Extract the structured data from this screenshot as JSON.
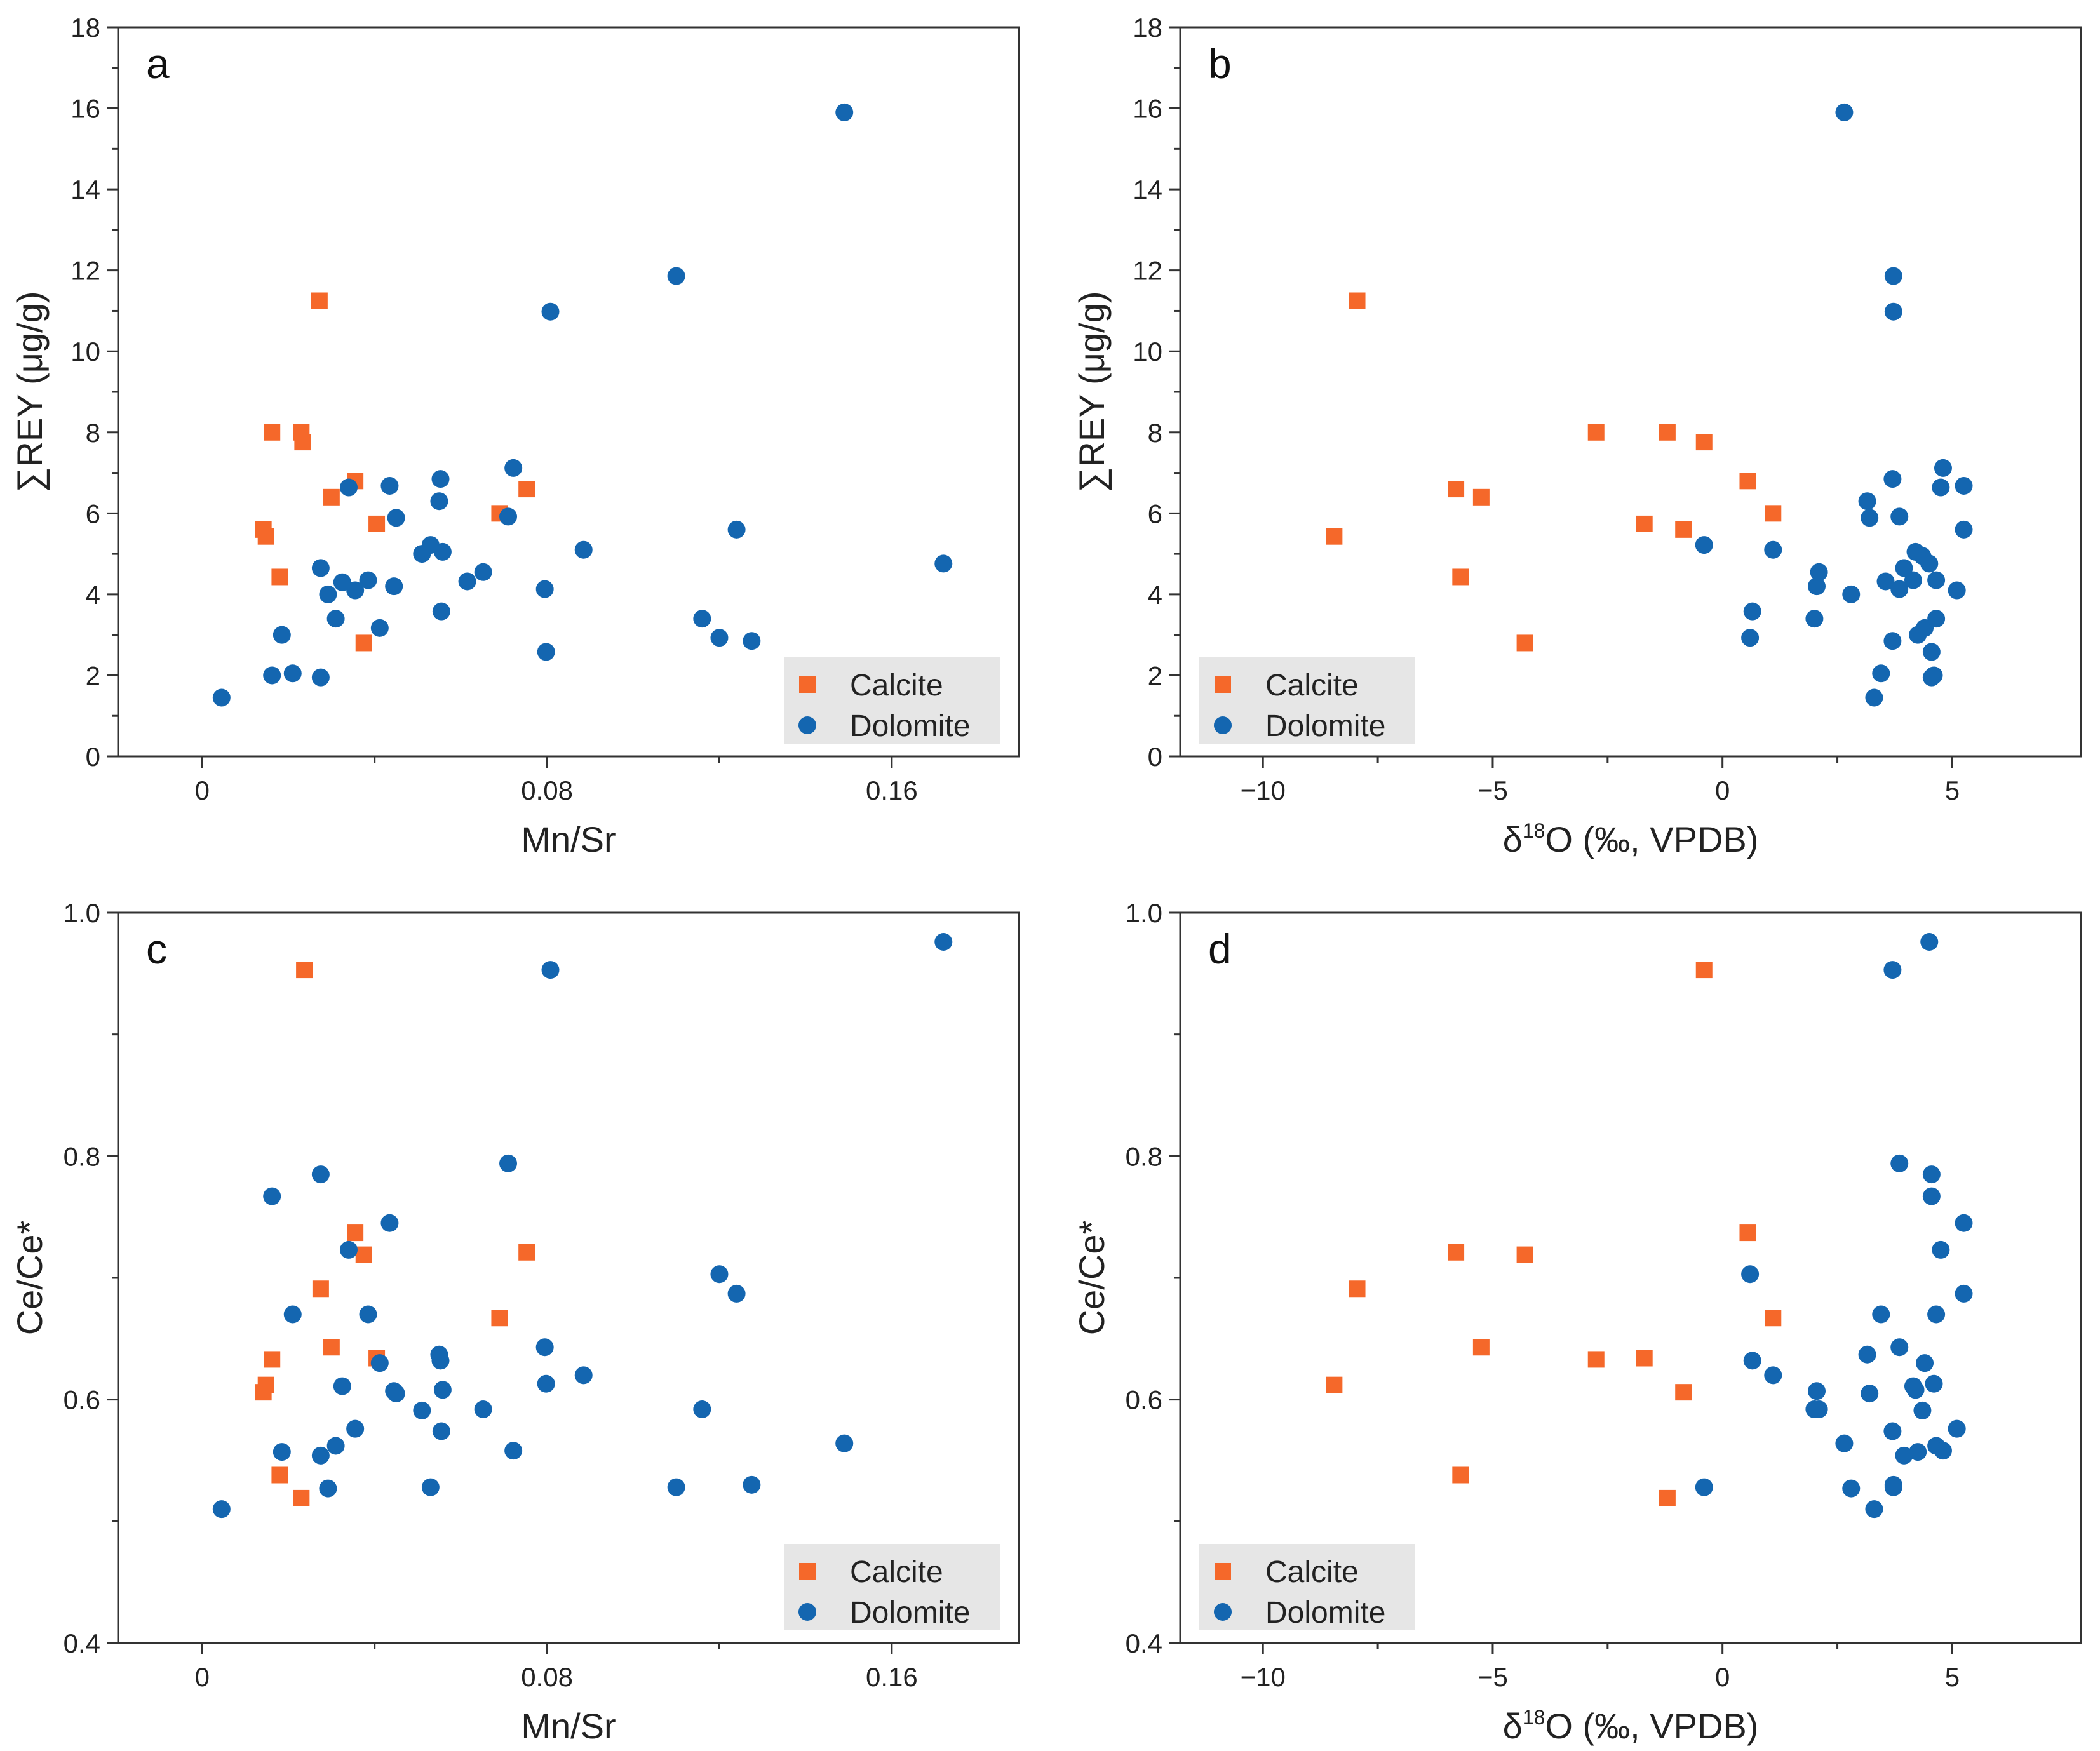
{
  "colors": {
    "calcite": "#f5682a",
    "dolomite": "#1466b0",
    "axis": "#333333",
    "legend_bg": "#e6e6e6"
  },
  "chart_data": [
    {
      "type": "scatter",
      "panel": "a",
      "xlabel": "Mn/Sr",
      "ylabel": "∑REY (μg/g)",
      "xlim": [
        -0.0195,
        0.1895
      ],
      "ylim": [
        0,
        18
      ],
      "xticks": [
        0,
        0.08,
        0.16
      ],
      "xtick_labels": [
        "0",
        "0.08",
        "0.16"
      ],
      "xminor": [
        0.04,
        0.12
      ],
      "yticks": [
        0,
        2,
        4,
        6,
        8,
        10,
        12,
        14,
        16,
        18
      ],
      "ytick_labels": [
        "0",
        "2",
        "4",
        "6",
        "8",
        "10",
        "12",
        "14",
        "16",
        "18"
      ],
      "yminor": [
        1,
        3,
        5,
        7,
        9,
        11,
        13,
        15,
        17
      ],
      "legend": {
        "position": "bottom-right",
        "entries": [
          "Calcite",
          "Dolomite"
        ]
      },
      "series": [
        {
          "name": "Calcite",
          "marker": "square",
          "points": [
            [
              0.0142,
              5.6
            ],
            [
              0.0148,
              5.43
            ],
            [
              0.0162,
              8.0
            ],
            [
              0.018,
              4.43
            ],
            [
              0.023,
              8.0
            ],
            [
              0.0233,
              7.76
            ],
            [
              0.0272,
              11.25
            ],
            [
              0.03,
              6.4
            ],
            [
              0.0355,
              6.8
            ],
            [
              0.0375,
              2.8
            ],
            [
              0.0405,
              5.74
            ],
            [
              0.069,
              6.0
            ],
            [
              0.0753,
              6.6
            ]
          ]
        },
        {
          "name": "Dolomite",
          "marker": "circle",
          "points": [
            [
              0.0045,
              1.45
            ],
            [
              0.0162,
              2.0
            ],
            [
              0.0185,
              3.0
            ],
            [
              0.021,
              2.05
            ],
            [
              0.0275,
              1.95
            ],
            [
              0.0275,
              4.65
            ],
            [
              0.0292,
              4.0
            ],
            [
              0.031,
              3.4
            ],
            [
              0.0325,
              4.3
            ],
            [
              0.034,
              6.64
            ],
            [
              0.0355,
              4.1
            ],
            [
              0.0385,
              4.35
            ],
            [
              0.0412,
              3.17
            ],
            [
              0.0435,
              6.68
            ],
            [
              0.0445,
              4.2
            ],
            [
              0.045,
              5.89
            ],
            [
              0.051,
              5.0
            ],
            [
              0.053,
              5.22
            ],
            [
              0.055,
              6.3
            ],
            [
              0.0553,
              6.85
            ],
            [
              0.0555,
              3.58
            ],
            [
              0.0558,
              5.05
            ],
            [
              0.0615,
              4.32
            ],
            [
              0.0652,
              4.55
            ],
            [
              0.071,
              5.92
            ],
            [
              0.0722,
              7.12
            ],
            [
              0.0795,
              4.13
            ],
            [
              0.0798,
              2.58
            ],
            [
              0.0808,
              10.98
            ],
            [
              0.0885,
              5.1
            ],
            [
              0.11,
              11.86
            ],
            [
              0.116,
              3.4
            ],
            [
              0.12,
              2.93
            ],
            [
              0.124,
              5.6
            ],
            [
              0.1275,
              2.85
            ],
            [
              0.149,
              15.9
            ],
            [
              0.172,
              4.76
            ]
          ]
        }
      ]
    },
    {
      "type": "scatter",
      "panel": "b",
      "xlabel": "δ18O (‰, VPDB)",
      "xlabel_base": "δ",
      "xlabel_sup": "18",
      "xlabel_rest": "O (‰, VPDB)",
      "ylabel": "∑REY (μg/g)",
      "xlim": [
        -11.8,
        7.8
      ],
      "ylim": [
        0,
        18
      ],
      "xticks": [
        -10,
        -5,
        0,
        5
      ],
      "xtick_labels": [
        "−10",
        "−5",
        "0",
        "5"
      ],
      "xminor": [
        -7.5,
        -2.5,
        2.5
      ],
      "yticks": [
        0,
        2,
        4,
        6,
        8,
        10,
        12,
        14,
        16,
        18
      ],
      "ytick_labels": [
        "0",
        "2",
        "4",
        "6",
        "8",
        "10",
        "12",
        "14",
        "16",
        "18"
      ],
      "yminor": [
        1,
        3,
        5,
        7,
        9,
        11,
        13,
        15,
        17
      ],
      "legend": {
        "position": "bottom-left",
        "entries": [
          "Calcite",
          "Dolomite"
        ]
      },
      "series": [
        {
          "name": "Calcite",
          "marker": "square",
          "points": [
            [
              -8.45,
              5.43
            ],
            [
              -7.95,
              11.25
            ],
            [
              -5.8,
              6.6
            ],
            [
              -5.7,
              4.43
            ],
            [
              -5.25,
              6.4
            ],
            [
              -4.3,
              2.8
            ],
            [
              -2.75,
              8.0
            ],
            [
              -1.7,
              5.74
            ],
            [
              -1.2,
              8.0
            ],
            [
              -0.85,
              5.6
            ],
            [
              -0.4,
              7.76
            ],
            [
              0.55,
              6.8
            ],
            [
              1.1,
              6.0
            ]
          ]
        },
        {
          "name": "Dolomite",
          "marker": "circle",
          "points": [
            [
              -0.4,
              5.22
            ],
            [
              0.6,
              2.93
            ],
            [
              0.65,
              3.58
            ],
            [
              1.1,
              5.1
            ],
            [
              2.0,
              3.4
            ],
            [
              2.05,
              4.2
            ],
            [
              2.1,
              4.55
            ],
            [
              2.65,
              15.9
            ],
            [
              2.8,
              4.0
            ],
            [
              3.15,
              6.3
            ],
            [
              3.2,
              5.89
            ],
            [
              3.3,
              1.45
            ],
            [
              3.45,
              2.05
            ],
            [
              3.55,
              4.32
            ],
            [
              3.7,
              2.85
            ],
            [
              3.7,
              6.85
            ],
            [
              3.72,
              11.86
            ],
            [
              3.72,
              10.98
            ],
            [
              3.85,
              5.92
            ],
            [
              3.85,
              4.13
            ],
            [
              3.95,
              4.65
            ],
            [
              4.15,
              4.35
            ],
            [
              4.2,
              5.05
            ],
            [
              4.25,
              3.0
            ],
            [
              4.35,
              4.95
            ],
            [
              4.4,
              3.17
            ],
            [
              4.5,
              4.76
            ],
            [
              4.55,
              2.58
            ],
            [
              4.55,
              1.95
            ],
            [
              4.6,
              2.0
            ],
            [
              4.65,
              4.35
            ],
            [
              4.65,
              3.4
            ],
            [
              4.75,
              6.64
            ],
            [
              4.8,
              7.12
            ],
            [
              5.1,
              4.1
            ],
            [
              5.25,
              6.68
            ],
            [
              5.25,
              5.6
            ]
          ]
        }
      ]
    },
    {
      "type": "scatter",
      "panel": "c",
      "xlabel": "Mn/Sr",
      "ylabel": "Ce/Ce*",
      "xlim": [
        -0.0195,
        0.1895
      ],
      "ylim": [
        0.4,
        1.0
      ],
      "xticks": [
        0,
        0.08,
        0.16
      ],
      "xtick_labels": [
        "0",
        "0.08",
        "0.16"
      ],
      "xminor": [
        0.04,
        0.12
      ],
      "yticks": [
        0.4,
        0.6,
        0.8,
        1.0
      ],
      "ytick_labels": [
        "0.4",
        "0.6",
        "0.8",
        "1.0"
      ],
      "yminor": [
        0.5,
        0.7,
        0.9
      ],
      "legend": {
        "position": "bottom-right",
        "entries": [
          "Calcite",
          "Dolomite"
        ]
      },
      "series": [
        {
          "name": "Calcite",
          "marker": "square",
          "points": [
            [
              0.0142,
              0.606
            ],
            [
              0.0148,
              0.612
            ],
            [
              0.0162,
              0.633
            ],
            [
              0.018,
              0.538
            ],
            [
              0.023,
              0.519
            ],
            [
              0.0237,
              0.953
            ],
            [
              0.0275,
              0.691
            ],
            [
              0.03,
              0.643
            ],
            [
              0.0355,
              0.737
            ],
            [
              0.0375,
              0.719
            ],
            [
              0.0405,
              0.634
            ],
            [
              0.069,
              0.667
            ],
            [
              0.0753,
              0.721
            ]
          ]
        },
        {
          "name": "Dolomite",
          "marker": "circle",
          "points": [
            [
              0.0045,
              0.51
            ],
            [
              0.0162,
              0.767
            ],
            [
              0.0185,
              0.557
            ],
            [
              0.021,
              0.67
            ],
            [
              0.0275,
              0.785
            ],
            [
              0.0275,
              0.554
            ],
            [
              0.0292,
              0.527
            ],
            [
              0.031,
              0.562
            ],
            [
              0.0325,
              0.611
            ],
            [
              0.034,
              0.723
            ],
            [
              0.0355,
              0.576
            ],
            [
              0.0385,
              0.67
            ],
            [
              0.0412,
              0.63
            ],
            [
              0.0435,
              0.745
            ],
            [
              0.0445,
              0.607
            ],
            [
              0.045,
              0.605
            ],
            [
              0.051,
              0.591
            ],
            [
              0.053,
              0.528
            ],
            [
              0.055,
              0.637
            ],
            [
              0.0553,
              0.632
            ],
            [
              0.0555,
              0.574
            ],
            [
              0.0558,
              0.608
            ],
            [
              0.0652,
              0.592
            ],
            [
              0.071,
              0.794
            ],
            [
              0.0722,
              0.558
            ],
            [
              0.0795,
              0.643
            ],
            [
              0.0798,
              0.613
            ],
            [
              0.0808,
              0.953
            ],
            [
              0.0885,
              0.62
            ],
            [
              0.11,
              0.528
            ],
            [
              0.116,
              0.592
            ],
            [
              0.12,
              0.703
            ],
            [
              0.124,
              0.687
            ],
            [
              0.1275,
              0.53
            ],
            [
              0.149,
              0.564
            ],
            [
              0.172,
              0.976
            ]
          ]
        }
      ]
    },
    {
      "type": "scatter",
      "panel": "d",
      "xlabel": "δ18O (‰, VPDB)",
      "xlabel_base": "δ",
      "xlabel_sup": "18",
      "xlabel_rest": "O (‰, VPDB)",
      "ylabel": "Ce/Ce*",
      "xlim": [
        -11.8,
        7.8
      ],
      "ylim": [
        0.4,
        1.0
      ],
      "xticks": [
        -10,
        -5,
        0,
        5
      ],
      "xtick_labels": [
        "−10",
        "−5",
        "0",
        "5"
      ],
      "xminor": [
        -7.5,
        -2.5,
        2.5
      ],
      "yticks": [
        0.4,
        0.6,
        0.8,
        1.0
      ],
      "ytick_labels": [
        "0.4",
        "0.6",
        "0.8",
        "1.0"
      ],
      "yminor": [
        0.5,
        0.7,
        0.9
      ],
      "legend": {
        "position": "bottom-left",
        "entries": [
          "Calcite",
          "Dolomite"
        ]
      },
      "series": [
        {
          "name": "Calcite",
          "marker": "square",
          "points": [
            [
              -8.45,
              0.612
            ],
            [
              -7.95,
              0.691
            ],
            [
              -5.8,
              0.721
            ],
            [
              -5.7,
              0.538
            ],
            [
              -5.25,
              0.643
            ],
            [
              -4.3,
              0.719
            ],
            [
              -2.75,
              0.633
            ],
            [
              -1.7,
              0.634
            ],
            [
              -1.2,
              0.519
            ],
            [
              -0.85,
              0.606
            ],
            [
              -0.4,
              0.953
            ],
            [
              0.55,
              0.737
            ],
            [
              1.1,
              0.667
            ]
          ]
        },
        {
          "name": "Dolomite",
          "marker": "circle",
          "points": [
            [
              -0.4,
              0.528
            ],
            [
              0.6,
              0.703
            ],
            [
              0.65,
              0.632
            ],
            [
              1.1,
              0.62
            ],
            [
              2.0,
              0.592
            ],
            [
              2.05,
              0.607
            ],
            [
              2.1,
              0.592
            ],
            [
              2.65,
              0.564
            ],
            [
              2.8,
              0.527
            ],
            [
              3.15,
              0.637
            ],
            [
              3.2,
              0.605
            ],
            [
              3.3,
              0.51
            ],
            [
              3.45,
              0.67
            ],
            [
              3.7,
              0.574
            ],
            [
              3.7,
              0.953
            ],
            [
              3.72,
              0.528
            ],
            [
              3.72,
              0.53
            ],
            [
              3.85,
              0.643
            ],
            [
              3.85,
              0.794
            ],
            [
              3.95,
              0.554
            ],
            [
              4.15,
              0.611
            ],
            [
              4.2,
              0.608
            ],
            [
              4.25,
              0.557
            ],
            [
              4.35,
              0.591
            ],
            [
              4.4,
              0.63
            ],
            [
              4.5,
              0.976
            ],
            [
              4.55,
              0.785
            ],
            [
              4.55,
              0.767
            ],
            [
              4.6,
              0.613
            ],
            [
              4.65,
              0.67
            ],
            [
              4.65,
              0.562
            ],
            [
              4.75,
              0.723
            ],
            [
              4.8,
              0.558
            ],
            [
              5.1,
              0.576
            ],
            [
              5.25,
              0.745
            ],
            [
              5.25,
              0.687
            ]
          ]
        }
      ]
    }
  ]
}
